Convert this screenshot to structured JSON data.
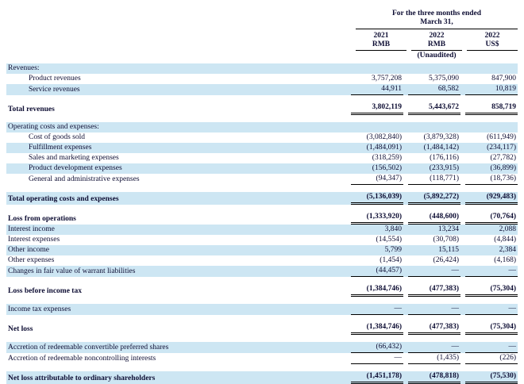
{
  "colors": {
    "row_shade": "#cde6f3",
    "text": "#0d0d33",
    "rule": "#000000"
  },
  "header": {
    "period_title": "For the three months ended",
    "period_subtitle": "March 31,",
    "columns": [
      {
        "year": "2021",
        "currency": "RMB",
        "note": ""
      },
      {
        "year": "2022",
        "currency": "RMB",
        "note": "(Unaudited)"
      },
      {
        "year": "2022",
        "currency": "US$",
        "note": ""
      }
    ]
  },
  "rows": [
    {
      "type": "section",
      "label": "Revenues:",
      "shaded": true
    },
    {
      "type": "item",
      "label": "Product revenues",
      "indent": true,
      "values": [
        "3,757,208",
        "5,375,090",
        "847,900"
      ],
      "rule": "none"
    },
    {
      "type": "item",
      "label": "Service revenues",
      "indent": true,
      "shaded": true,
      "values": [
        "44,911",
        "68,582",
        "10,819"
      ],
      "rule": "single"
    },
    {
      "type": "spacer"
    },
    {
      "type": "item",
      "label": "Total revenues",
      "bold": true,
      "values": [
        "3,802,119",
        "5,443,672",
        "858,719"
      ],
      "rule": "double"
    },
    {
      "type": "spacer"
    },
    {
      "type": "section",
      "label": "Operating costs and expenses:",
      "shaded": true
    },
    {
      "type": "item",
      "label": "Cost of goods sold",
      "indent": true,
      "values": [
        "(3,082,840)",
        "(3,879,328)",
        "(611,949)"
      ],
      "rule": "none"
    },
    {
      "type": "item",
      "label": "Fulfillment expenses",
      "indent": true,
      "shaded": true,
      "values": [
        "(1,484,091)",
        "(1,484,142)",
        "(234,117)"
      ],
      "rule": "none"
    },
    {
      "type": "item",
      "label": "Sales and marketing expenses",
      "indent": true,
      "values": [
        "(318,259)",
        "(176,116)",
        "(27,782)"
      ],
      "rule": "none"
    },
    {
      "type": "item",
      "label": "Product development expenses",
      "indent": true,
      "shaded": true,
      "values": [
        "(156,502)",
        "(233,915)",
        "(36,899)"
      ],
      "rule": "none"
    },
    {
      "type": "item",
      "label": "General and administrative expenses",
      "indent": true,
      "values": [
        "(94,347)",
        "(118,771)",
        "(18,736)"
      ],
      "rule": "single"
    },
    {
      "type": "spacer"
    },
    {
      "type": "item",
      "label": "Total operating costs and expenses",
      "bold": true,
      "shaded": true,
      "values": [
        "(5,136,039)",
        "(5,892,272)",
        "(929,483)"
      ],
      "rule": "double"
    },
    {
      "type": "spacer"
    },
    {
      "type": "item",
      "label": "Loss from operations",
      "bold": true,
      "values": [
        "(1,333,920)",
        "(448,600)",
        "(70,764)"
      ],
      "rule": "double"
    },
    {
      "type": "item",
      "label": "Interest income",
      "shaded": true,
      "values": [
        "3,840",
        "13,234",
        "2,088"
      ],
      "rule": "none"
    },
    {
      "type": "item",
      "label": "Interest expenses",
      "values": [
        "(14,554)",
        "(30,708)",
        "(4,844)"
      ],
      "rule": "none"
    },
    {
      "type": "item",
      "label": "Other income",
      "shaded": true,
      "values": [
        "5,799",
        "15,115",
        "2,384"
      ],
      "rule": "none"
    },
    {
      "type": "item",
      "label": "Other expenses",
      "values": [
        "(1,454)",
        "(26,424)",
        "(4,168)"
      ],
      "rule": "none"
    },
    {
      "type": "item",
      "label": "Changes in fair value of warrant liabilities",
      "shaded": true,
      "values": [
        "(44,457)",
        "—",
        "—"
      ],
      "rule": "single"
    },
    {
      "type": "spacer"
    },
    {
      "type": "item",
      "label": "Loss before income tax",
      "bold": true,
      "values": [
        "(1,384,746)",
        "(477,383)",
        "(75,304)"
      ],
      "rule": "double"
    },
    {
      "type": "spacer"
    },
    {
      "type": "item",
      "label": "Income tax expenses",
      "shaded": true,
      "values": [
        "—",
        "—",
        "—"
      ],
      "rule": "single"
    },
    {
      "type": "spacer"
    },
    {
      "type": "item",
      "label": "Net loss",
      "bold": true,
      "values": [
        "(1,384,746)",
        "(477,383)",
        "(75,304)"
      ],
      "rule": "double"
    },
    {
      "type": "spacer"
    },
    {
      "type": "item",
      "label": "Accretion of redeemable convertible preferred shares",
      "shaded": true,
      "values": [
        "(66,432)",
        "—",
        "—"
      ],
      "rule": "single"
    },
    {
      "type": "item",
      "label": "Accretion of redeemable noncontrolling interests",
      "values": [
        "—",
        "(1,435)",
        "(226)"
      ],
      "rule": "single"
    },
    {
      "type": "spacer"
    },
    {
      "type": "item",
      "label": "Net loss attributable to ordinary shareholders",
      "bold": true,
      "shaded": true,
      "values": [
        "(1,451,178)",
        "(478,818)",
        "(75,530)"
      ],
      "rule": "double"
    }
  ]
}
